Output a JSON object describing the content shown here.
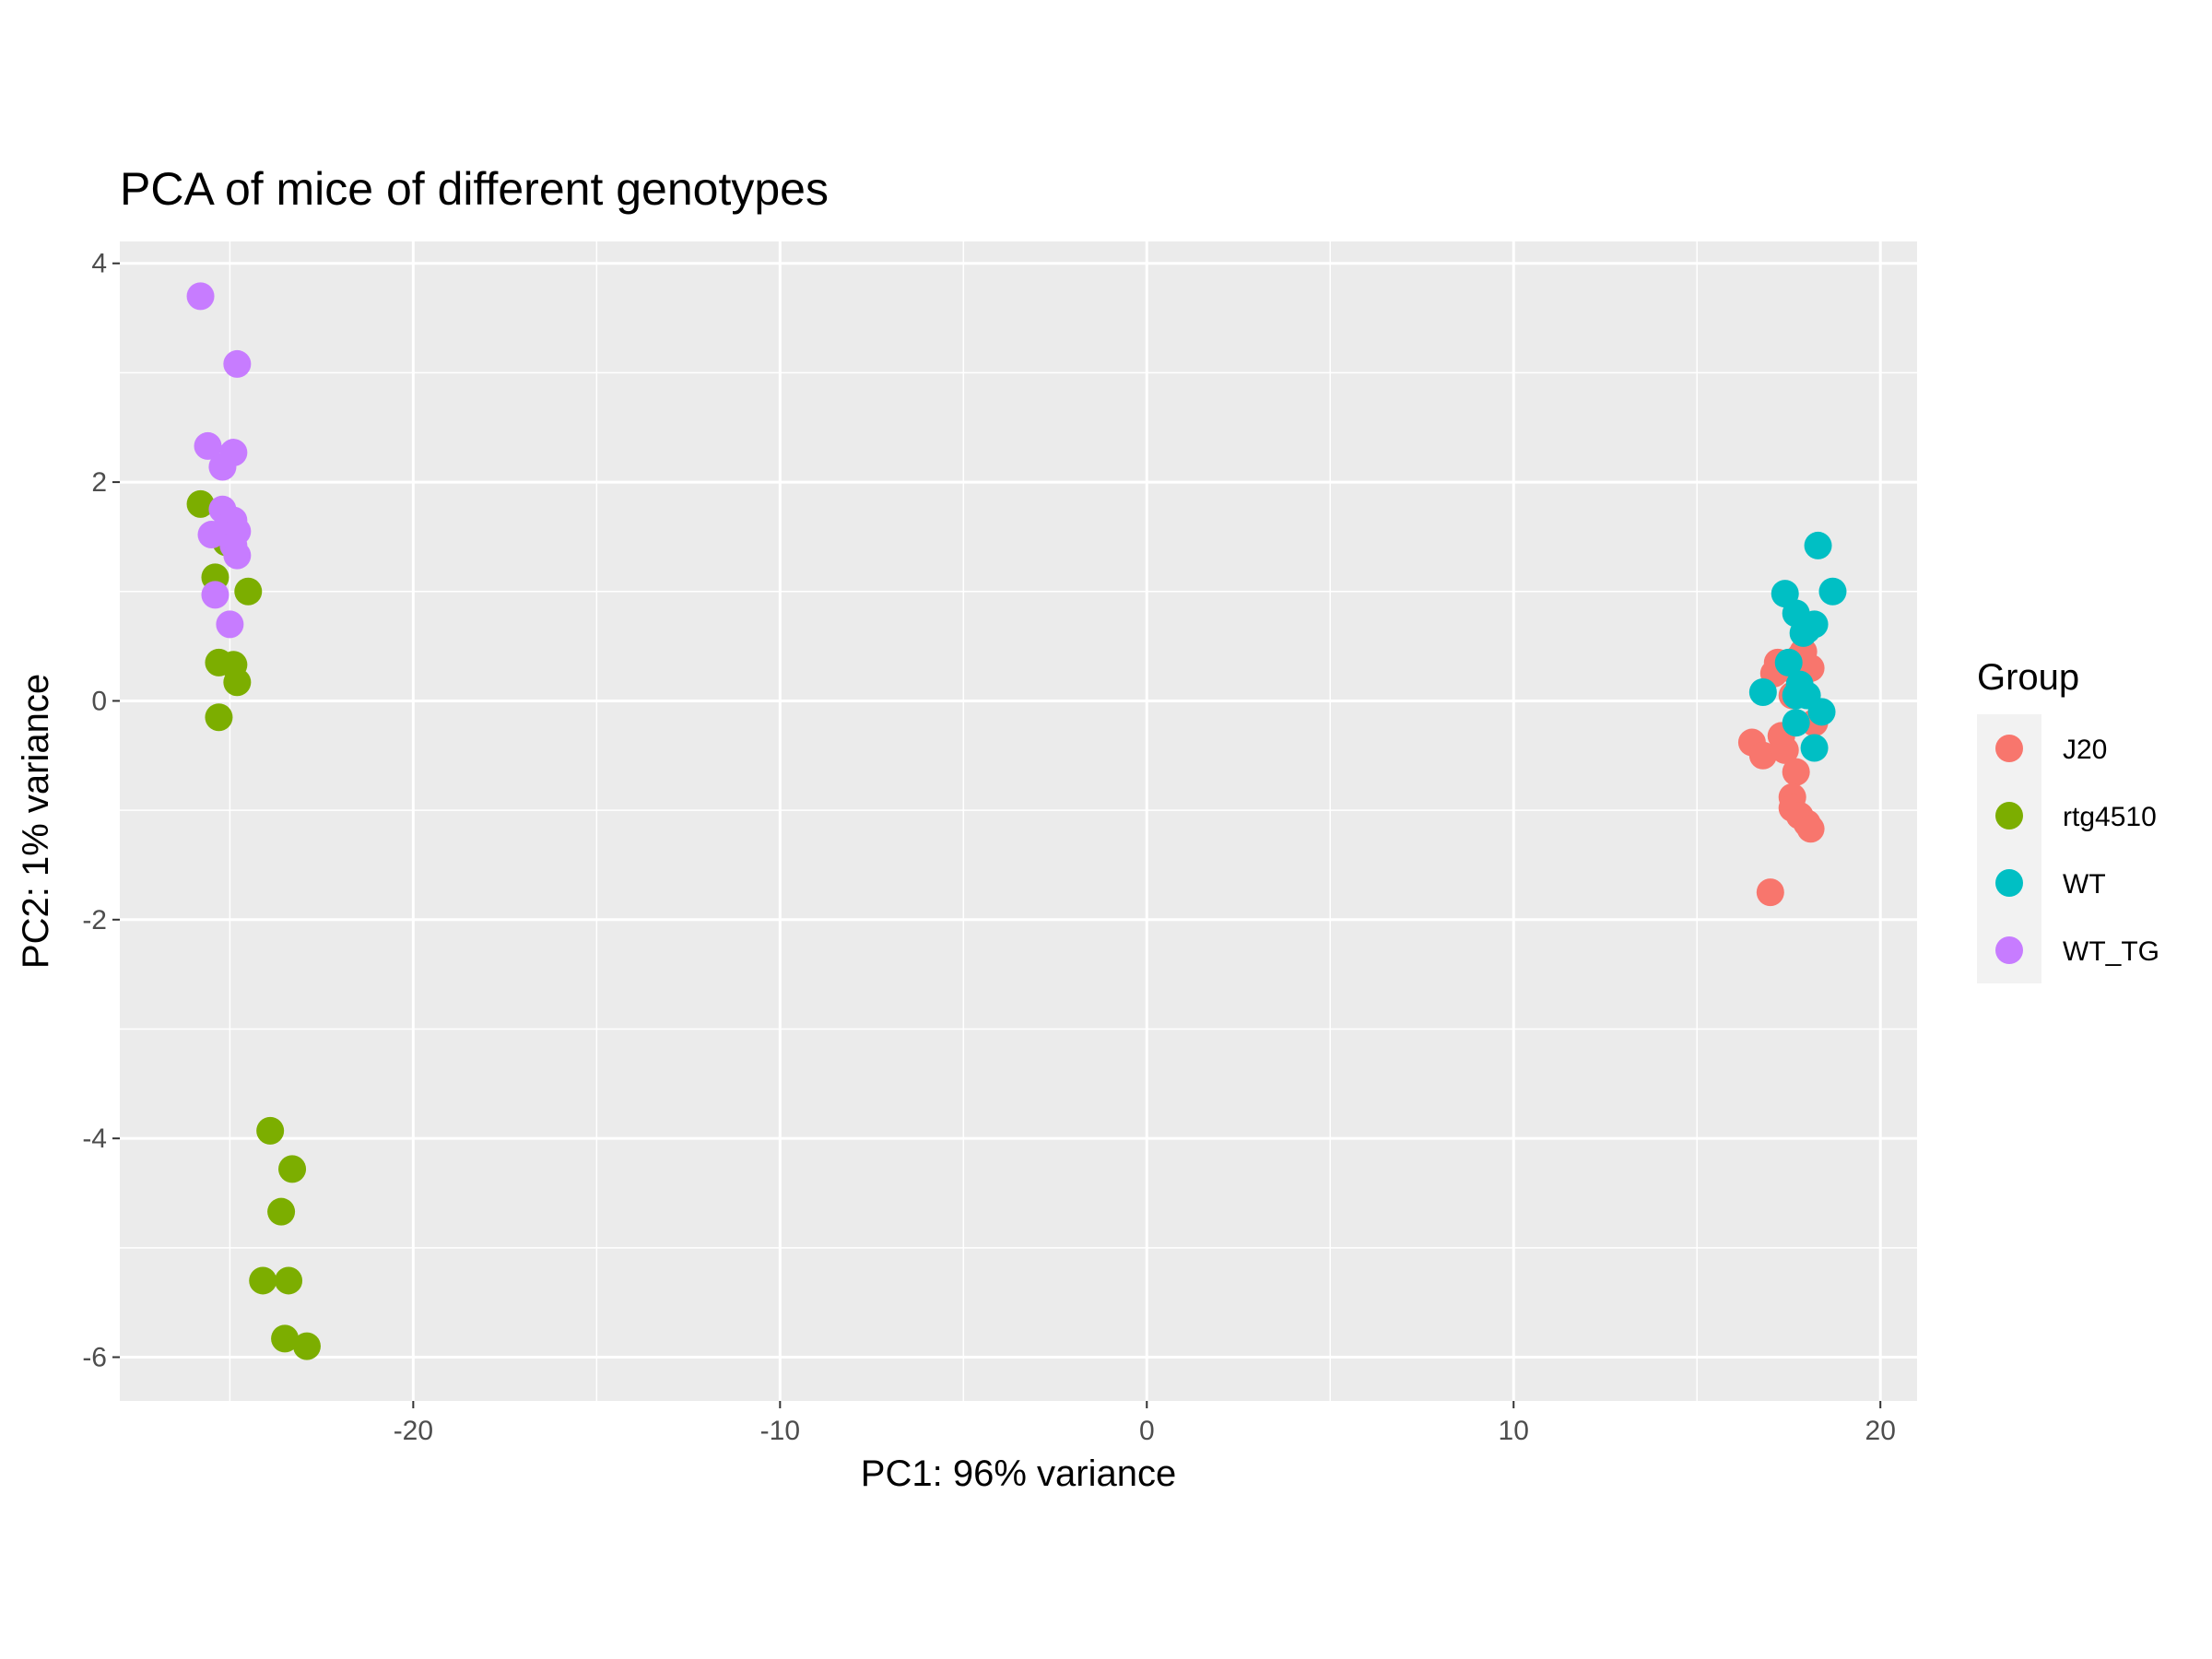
{
  "chart_data": {
    "type": "scatter",
    "title": "PCA of mice of different genotypes",
    "xlabel": "PC1: 96% variance",
    "ylabel": "PC2: 1% variance",
    "xlim": [
      -28,
      21
    ],
    "ylim": [
      -6.4,
      4.2
    ],
    "xticks": [
      "-20",
      "-10",
      "0",
      "10",
      "20"
    ],
    "yticks": [
      "4",
      "2",
      "0",
      "-2",
      "-4",
      "-6"
    ],
    "grid": true,
    "legend": {
      "title": "Group",
      "position": "right"
    },
    "series": [
      {
        "name": "J20",
        "color": "#F8766D",
        "points": [
          [
            17.2,
            0.35
          ],
          [
            17.1,
            0.25
          ],
          [
            17.5,
            0.3
          ],
          [
            17.8,
            0.4
          ],
          [
            18.1,
            0.3
          ],
          [
            17.9,
            0.45
          ],
          [
            17.6,
            0.05
          ],
          [
            18.2,
            -0.2
          ],
          [
            16.5,
            -0.38
          ],
          [
            16.8,
            -0.5
          ],
          [
            17.3,
            -0.32
          ],
          [
            17.4,
            -0.45
          ],
          [
            17.7,
            -0.65
          ],
          [
            17.6,
            -0.88
          ],
          [
            17.6,
            -0.98
          ],
          [
            17.8,
            -1.05
          ],
          [
            18.0,
            -1.12
          ],
          [
            18.1,
            -1.17
          ],
          [
            17.0,
            -1.75
          ]
        ]
      },
      {
        "name": "rtg4510",
        "color": "#7CAE00",
        "points": [
          [
            -25.8,
            1.8
          ],
          [
            -25.1,
            1.45
          ],
          [
            -25.4,
            1.13
          ],
          [
            -24.5,
            1.0
          ],
          [
            -25.3,
            0.35
          ],
          [
            -24.9,
            0.33
          ],
          [
            -24.8,
            0.17
          ],
          [
            -25.3,
            -0.15
          ],
          [
            -23.9,
            -3.93
          ],
          [
            -23.3,
            -4.28
          ],
          [
            -23.6,
            -4.67
          ],
          [
            -24.1,
            -5.3
          ],
          [
            -23.4,
            -5.3
          ],
          [
            -23.5,
            -5.83
          ],
          [
            -22.9,
            -5.9
          ]
        ]
      },
      {
        "name": "WT",
        "color": "#00BFC4",
        "points": [
          [
            18.3,
            1.42
          ],
          [
            17.4,
            0.98
          ],
          [
            18.7,
            1.0
          ],
          [
            17.7,
            0.8
          ],
          [
            18.2,
            0.7
          ],
          [
            18.0,
            0.65
          ],
          [
            17.9,
            0.62
          ],
          [
            17.5,
            0.35
          ],
          [
            17.8,
            0.15
          ],
          [
            17.7,
            0.05
          ],
          [
            16.8,
            0.08
          ],
          [
            18.0,
            0.05
          ],
          [
            18.4,
            -0.1
          ],
          [
            17.7,
            -0.2
          ],
          [
            18.2,
            -0.43
          ]
        ]
      },
      {
        "name": "WT_TG",
        "color": "#C77CFF",
        "points": [
          [
            -25.8,
            3.7
          ],
          [
            -24.8,
            3.08
          ],
          [
            -25.6,
            2.33
          ],
          [
            -24.9,
            2.27
          ],
          [
            -25.2,
            2.14
          ],
          [
            -25.2,
            1.75
          ],
          [
            -24.9,
            1.65
          ],
          [
            -25.1,
            1.58
          ],
          [
            -24.8,
            1.55
          ],
          [
            -25.5,
            1.52
          ],
          [
            -24.9,
            1.42
          ],
          [
            -24.8,
            1.33
          ],
          [
            -25.4,
            0.97
          ],
          [
            -25.0,
            0.7
          ]
        ]
      }
    ]
  }
}
